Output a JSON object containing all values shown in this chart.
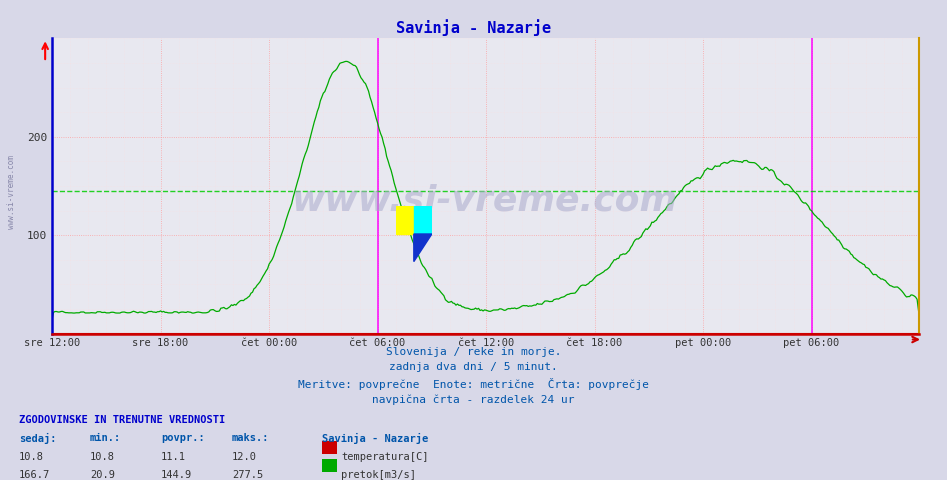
{
  "title": "Savinja - Nazarje",
  "title_color": "#0000cc",
  "bg_color": "#d8d8e8",
  "plot_bg_color": "#e8e8f0",
  "grid_color_major": "#ff9999",
  "grid_color_minor": "#ffdddd",
  "ylim": [
    0,
    300
  ],
  "xlim": [
    0,
    575
  ],
  "x_tick_positions": [
    0,
    72,
    144,
    216,
    288,
    360,
    432,
    504
  ],
  "x_tick_labels": [
    "sre 12:00",
    "sre 18:00",
    "čet 00:00",
    "čet 06:00",
    "čet 12:00",
    "čet 18:00",
    "pet 00:00",
    "pet 06:00"
  ],
  "avg_line_y": 144.9,
  "avg_line_color": "#00cc00",
  "vline1_x": 216,
  "vline2_x": 504,
  "vline_color": "#ff00ff",
  "temp_color": "#cc0000",
  "flow_color": "#00aa00",
  "temp_avg": 11.1,
  "flow_avg": 144.9,
  "flow_min": 20.9,
  "flow_max": 277.5,
  "temp_min": 10.8,
  "temp_max": 12.0,
  "temp_sedaj": 10.8,
  "flow_sedaj": 166.7,
  "watermark_text": "www.si-vreme.com",
  "watermark_color": "#aaaacc",
  "footer_text1": "Slovenija / reke in morje.",
  "footer_text2": "zadnja dva dni / 5 minut.",
  "footer_text3": "Meritve: povprečne  Enote: metrične  Črta: povprečje",
  "footer_text4": "navpična črta - razdelek 24 ur",
  "footer_color": "#0055aa",
  "legend_title": "Savinja - Nazarje",
  "legend_temp_label": "temperatura[C]",
  "legend_flow_label": "pretok[m3/s]",
  "table_header": "ZGODOVINSKE IN TRENUTNE VREDNOSTI",
  "table_col1": "sedaj:",
  "table_col2": "min.:",
  "table_col3": "povpr.:",
  "table_col4": "maks.:",
  "left_axis_color": "#0000cc",
  "bottom_axis_color": "#cc0000",
  "right_axis_color": "#cc9900",
  "sidebar_text": "www.si-vreme.com"
}
